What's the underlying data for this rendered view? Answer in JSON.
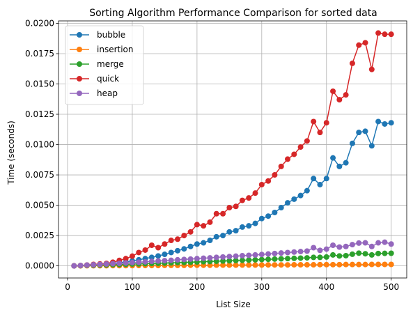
{
  "chart_data": {
    "type": "line",
    "title": "Sorting Algorithm Performance Comparison for sorted data",
    "xlabel": "List Size",
    "ylabel": "Time (seconds)",
    "xlim": [
      -14,
      524
    ],
    "ylim": [
      -0.001,
      0.0202
    ],
    "xticks": [
      0,
      100,
      200,
      300,
      400,
      500
    ],
    "xtick_labels": [
      "0",
      "100",
      "200",
      "300",
      "400",
      "500"
    ],
    "yticks": [
      0,
      0.0025,
      0.005,
      0.0075,
      0.01,
      0.0125,
      0.015,
      0.0175,
      0.02
    ],
    "ytick_labels": [
      "0.0000",
      "0.0025",
      "0.0050",
      "0.0075",
      "0.0100",
      "0.0125",
      "0.0150",
      "0.0175",
      "0.0200"
    ],
    "grid": true,
    "legend_position": "top-left",
    "x": [
      10,
      20,
      30,
      40,
      50,
      60,
      70,
      80,
      90,
      100,
      110,
      120,
      130,
      140,
      150,
      160,
      170,
      180,
      190,
      200,
      210,
      220,
      230,
      240,
      250,
      260,
      270,
      280,
      290,
      300,
      310,
      320,
      330,
      340,
      350,
      360,
      370,
      380,
      390,
      400,
      410,
      420,
      430,
      440,
      450,
      460,
      470,
      480,
      490,
      500
    ],
    "series": [
      {
        "name": "bubble",
        "color": "#1f77b4",
        "values": [
          0.0,
          2e-05,
          4e-05,
          7e-05,
          0.0001,
          0.00014,
          0.0002,
          0.00026,
          0.00033,
          0.00041,
          0.0005,
          0.0006,
          0.0007,
          0.00082,
          0.00095,
          0.0011,
          0.00125,
          0.0014,
          0.0016,
          0.0018,
          0.0019,
          0.0021,
          0.0024,
          0.0025,
          0.0028,
          0.0029,
          0.0032,
          0.0033,
          0.0035,
          0.0039,
          0.0041,
          0.0044,
          0.0048,
          0.0052,
          0.0055,
          0.0058,
          0.0062,
          0.0072,
          0.0067,
          0.0072,
          0.0089,
          0.0082,
          0.0085,
          0.0101,
          0.011,
          0.0111,
          0.0099,
          0.0119,
          0.0117,
          0.0118
        ]
      },
      {
        "name": "insertion",
        "color": "#ff7f0e",
        "values": [
          0.0,
          0.0,
          1e-05,
          1e-05,
          1e-05,
          1e-05,
          2e-05,
          2e-05,
          2e-05,
          2e-05,
          3e-05,
          3e-05,
          3e-05,
          3e-05,
          4e-05,
          4e-05,
          4e-05,
          4e-05,
          5e-05,
          5e-05,
          5e-05,
          5e-05,
          6e-05,
          6e-05,
          6e-05,
          6e-05,
          7e-05,
          7e-05,
          7e-05,
          7e-05,
          8e-05,
          8e-05,
          8e-05,
          8e-05,
          9e-05,
          9e-05,
          9e-05,
          9e-05,
          0.0001,
          0.0001,
          0.0001,
          0.0001,
          0.00011,
          0.00011,
          0.00011,
          0.00011,
          0.00012,
          0.00012,
          0.00012,
          0.00012
        ]
      },
      {
        "name": "merge",
        "color": "#2ca02c",
        "values": [
          0.0,
          2e-05,
          4e-05,
          5e-05,
          7e-05,
          8e-05,
          0.0001,
          0.00011,
          0.00013,
          0.00015,
          0.00016,
          0.00018,
          0.0002,
          0.00021,
          0.00023,
          0.00025,
          0.00027,
          0.00028,
          0.0003,
          0.00032,
          0.00034,
          0.00036,
          0.00038,
          0.0004,
          0.00042,
          0.00044,
          0.00046,
          0.00048,
          0.0005,
          0.00052,
          0.00054,
          0.00056,
          0.00058,
          0.0006,
          0.00062,
          0.00064,
          0.00066,
          0.0007,
          0.0007,
          0.00073,
          0.0009,
          0.00082,
          0.00084,
          0.00096,
          0.00105,
          0.001,
          0.0009,
          0.00102,
          0.00103,
          0.00104
        ]
      },
      {
        "name": "quick",
        "color": "#d62728",
        "values": [
          0.0,
          3e-05,
          7e-05,
          0.00012,
          0.00016,
          0.0002,
          0.0003,
          0.00045,
          0.0006,
          0.0008,
          0.0011,
          0.0013,
          0.0017,
          0.0015,
          0.0018,
          0.0021,
          0.0022,
          0.0025,
          0.0028,
          0.0034,
          0.0033,
          0.0036,
          0.0043,
          0.0043,
          0.0048,
          0.0049,
          0.0054,
          0.0056,
          0.006,
          0.0067,
          0.007,
          0.0075,
          0.0082,
          0.0088,
          0.0092,
          0.0098,
          0.0103,
          0.0119,
          0.011,
          0.0118,
          0.0144,
          0.0137,
          0.0141,
          0.0167,
          0.0182,
          0.0184,
          0.0162,
          0.0192,
          0.0191,
          0.0191
        ]
      },
      {
        "name": "heap",
        "color": "#9467bd",
        "values": [
          0.0,
          3e-05,
          6e-05,
          9e-05,
          0.00012,
          0.00015,
          0.00018,
          0.00021,
          0.00024,
          0.00027,
          0.0003,
          0.00033,
          0.00037,
          0.0004,
          0.00043,
          0.00046,
          0.0005,
          0.00053,
          0.00056,
          0.0006,
          0.00063,
          0.00066,
          0.0007,
          0.00073,
          0.00077,
          0.0008,
          0.00084,
          0.00087,
          0.0009,
          0.00094,
          0.00098,
          0.00102,
          0.00106,
          0.0011,
          0.00114,
          0.00118,
          0.00122,
          0.0015,
          0.00128,
          0.00138,
          0.0017,
          0.00155,
          0.0016,
          0.00175,
          0.00188,
          0.0019,
          0.0016,
          0.0019,
          0.00195,
          0.0018
        ]
      }
    ]
  }
}
